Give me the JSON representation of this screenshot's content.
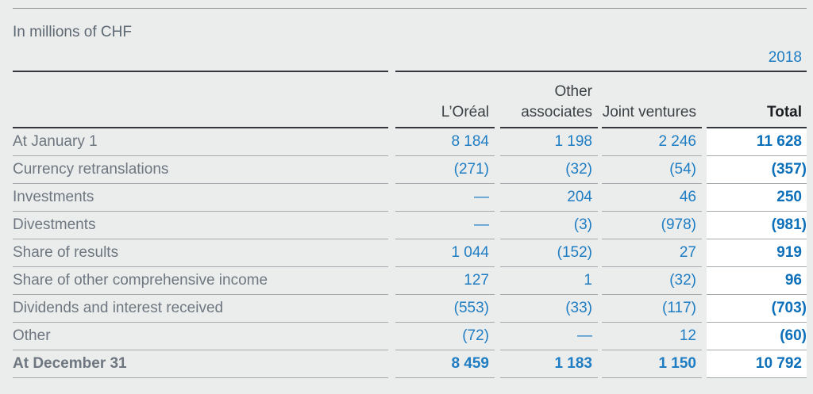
{
  "meta": {
    "units_label": "In millions of CHF",
    "year": "2018"
  },
  "colors": {
    "background": "#ebecec",
    "accent_blue": "#1e7dc3",
    "accent_blue_bold": "#0c6fb9",
    "muted_gray": "#6e7780",
    "dark_rule": "#34383c",
    "light_rule": "#a5aaae",
    "total_column_highlight": "#ffffff"
  },
  "chart_data": {
    "type": "table",
    "title": "In millions of CHF",
    "year": "2018",
    "columns": [
      "L’Oréal",
      "Other associates",
      "Joint ventures",
      "Total"
    ],
    "rows": [
      {
        "kind": "opening",
        "label": "At January 1",
        "values": [
          "8 184",
          "1 198",
          "2 246",
          "11 628"
        ]
      },
      {
        "kind": "movement",
        "label": "Currency retranslations",
        "values": [
          "(271)",
          "(32)",
          "(54)",
          "(357)"
        ]
      },
      {
        "kind": "movement",
        "label": "Investments",
        "values": [
          "—",
          "204",
          "46",
          "250"
        ]
      },
      {
        "kind": "movement",
        "label": "Divestments",
        "values": [
          "—",
          "(3)",
          "(978)",
          "(981)"
        ]
      },
      {
        "kind": "movement",
        "label": "Share of results",
        "values": [
          "1 044",
          "(152)",
          "27",
          "919"
        ]
      },
      {
        "kind": "movement",
        "label": "Share of other comprehensive income",
        "values": [
          "127",
          "1",
          "(32)",
          "96"
        ]
      },
      {
        "kind": "movement",
        "label": "Dividends and interest received",
        "values": [
          "(553)",
          "(33)",
          "(117)",
          "(703)"
        ]
      },
      {
        "kind": "movement",
        "label": "Other",
        "values": [
          "(72)",
          "—",
          "12",
          "(60)"
        ]
      },
      {
        "kind": "closing",
        "label": "At December 31",
        "values": [
          "8 459",
          "1 183",
          "1 150",
          "10 792"
        ]
      }
    ]
  }
}
